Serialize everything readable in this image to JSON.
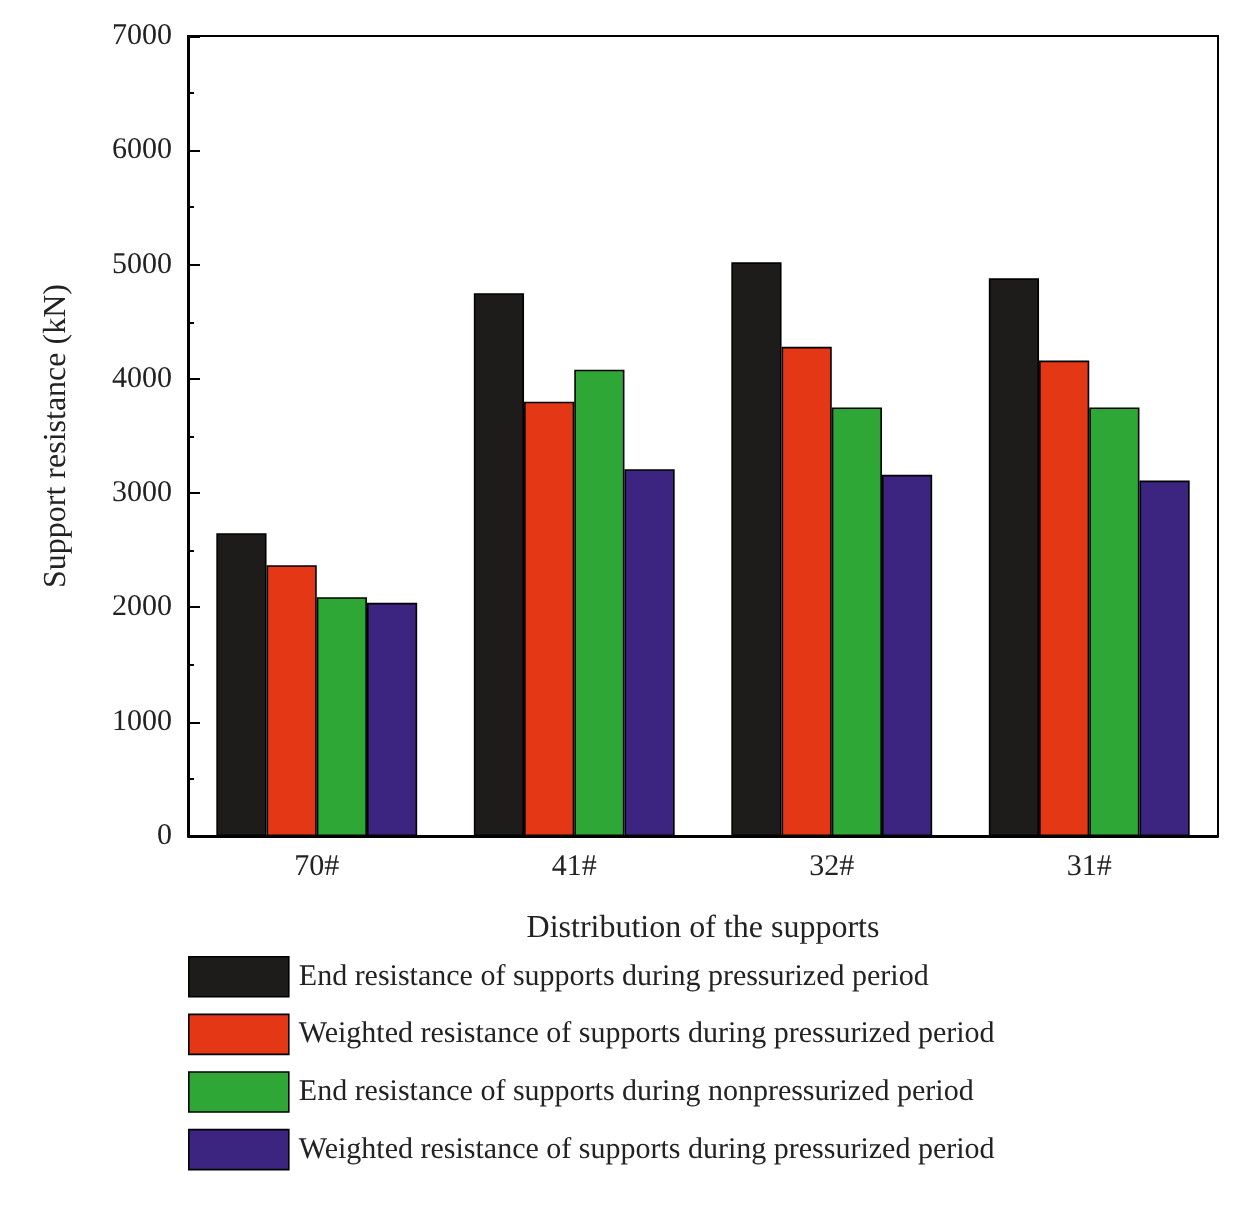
{
  "chart_data": {
    "type": "bar",
    "xlabel": "Distribution of the supports",
    "ylabel": "Support resistance (kN)",
    "categories": [
      "70#",
      "41#",
      "32#",
      "31#"
    ],
    "series": [
      {
        "name": "End resistance of supports during pressurized period",
        "color": "#1d1c1a",
        "values": [
          2650,
          4750,
          5020,
          4880
        ]
      },
      {
        "name": "Weighted resistance of supports during pressurized period",
        "color": "#e33716",
        "values": [
          2370,
          3800,
          4280,
          4160
        ]
      },
      {
        "name": "End resistance of supports during nonpressurized period",
        "color": "#2ea737",
        "values": [
          2090,
          4080,
          3750,
          3750
        ]
      },
      {
        "name": "Weighted resistance of supports during pressurized period",
        "color": "#3c2580",
        "values": [
          2040,
          3210,
          3160,
          3110
        ]
      }
    ],
    "ylim": [
      0,
      7000
    ],
    "yticks": [
      0,
      1000,
      2000,
      3000,
      4000,
      5000,
      6000,
      7000
    ],
    "grid": false,
    "legend": "bottom"
  }
}
